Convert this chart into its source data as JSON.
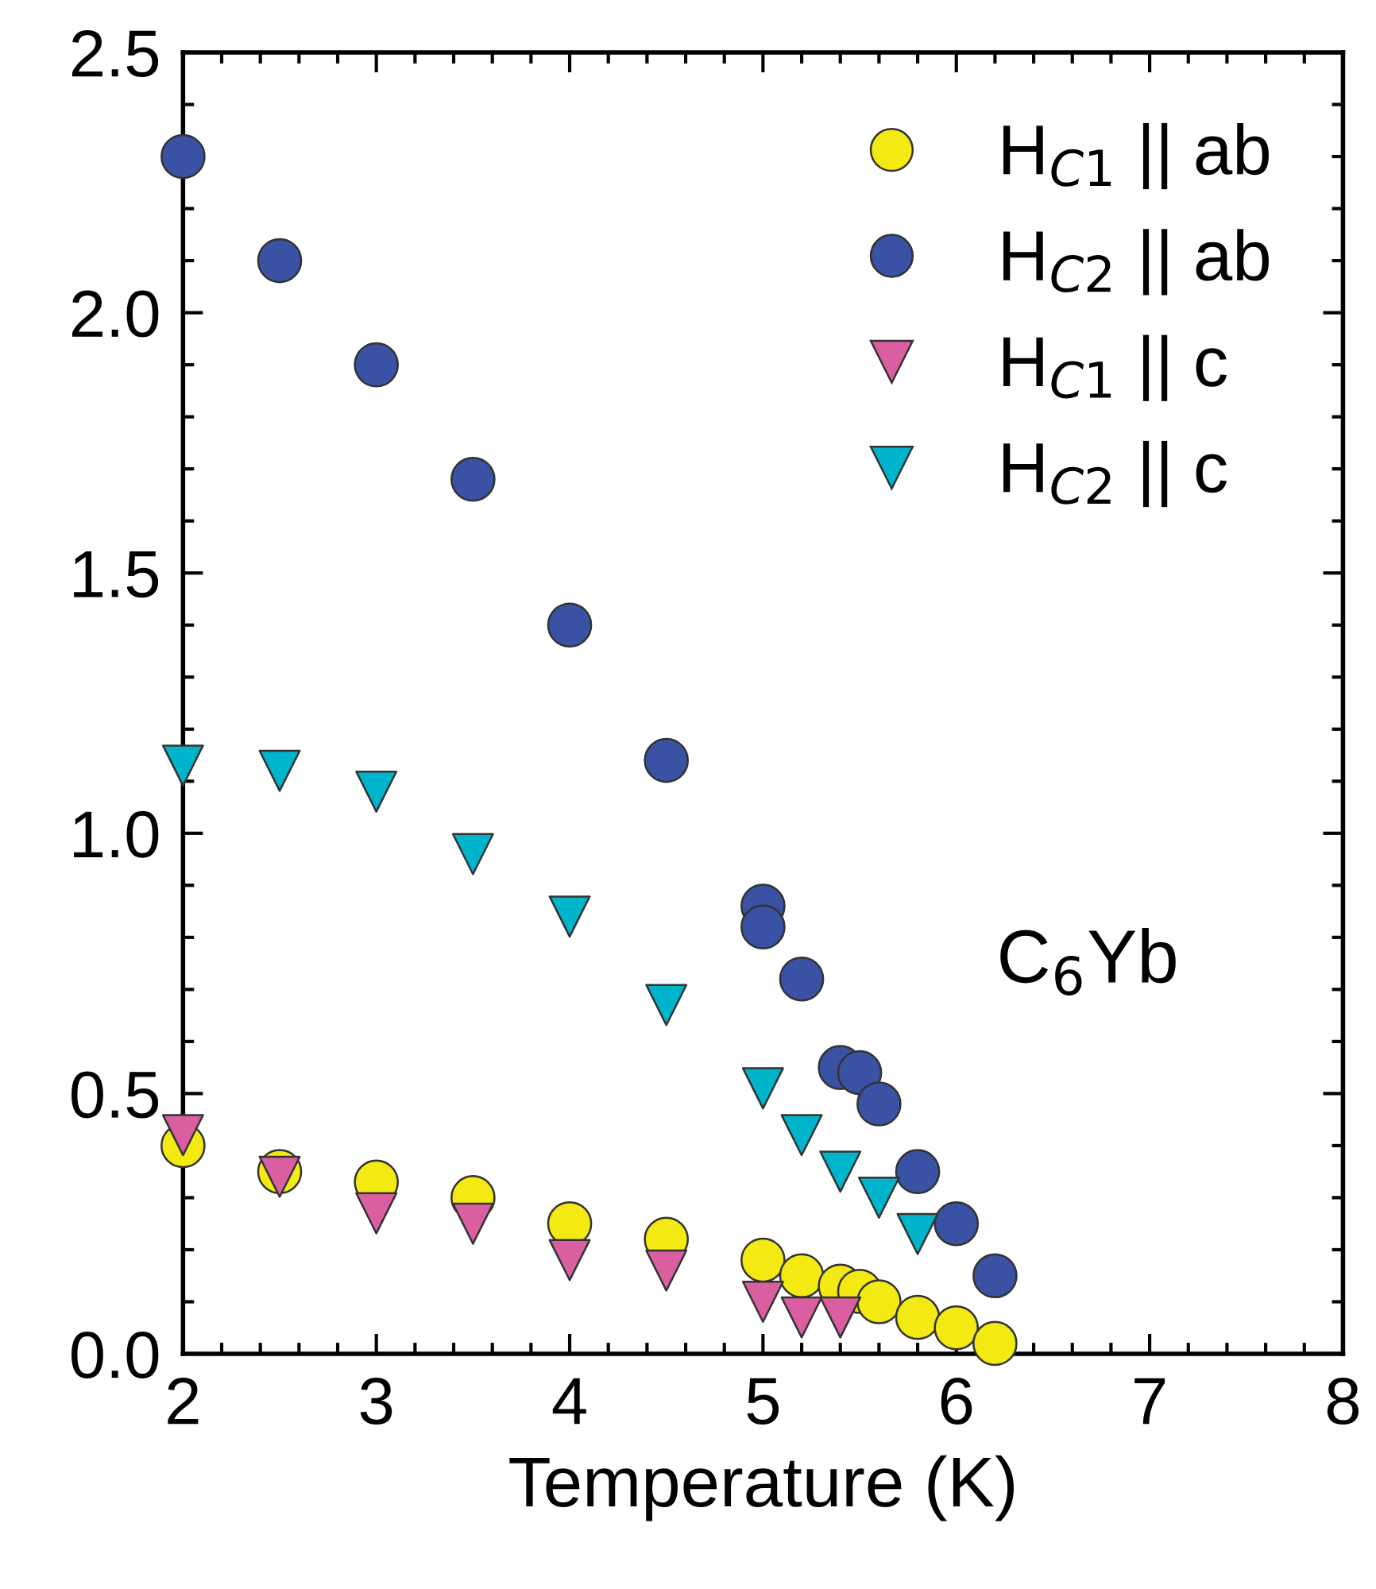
{
  "chart_data": {
    "type": "scatter",
    "xlabel": "Temperature (K)",
    "x": [
      2,
      2.5,
      3,
      3.5,
      4,
      4.5,
      5,
      5.2,
      5.4,
      5.5,
      5.6,
      5.8,
      6.0,
      6.2
    ],
    "series": [
      {
        "name": "H$_{C1}$ || ab",
        "color": "#f2ea12",
        "marker": "circle",
        "values": [
          0.4,
          0.35,
          0.33,
          0.3,
          0.25,
          0.22,
          0.18,
          0.15,
          0.13,
          0.12,
          0.1,
          0.07,
          0.05,
          0.02
        ]
      },
      {
        "name": "H$_{C2}$ || ab",
        "color": "#3a52a4",
        "marker": "circle",
        "x": [
          2,
          2.5,
          3,
          3.5,
          4,
          4.5,
          5,
          5,
          5.2,
          5.4,
          5.5,
          5.6,
          5.8,
          6.0,
          6.2
        ],
        "values": [
          2.3,
          2.1,
          1.9,
          1.68,
          1.4,
          1.14,
          0.86,
          0.82,
          0.72,
          0.55,
          0.54,
          0.48,
          0.35,
          0.25,
          0.15
        ]
      },
      {
        "name": "H$_{C1}$ || c",
        "color": "#d95fa0",
        "marker": "triangle",
        "x": [
          2,
          2.5,
          3,
          3.5,
          4,
          4.5,
          5,
          5.2,
          5.4
        ],
        "values": [
          0.42,
          0.34,
          0.27,
          0.25,
          0.18,
          0.16,
          0.1,
          0.07,
          0.07
        ]
      },
      {
        "name": "H$_{C2}$ || c",
        "color": "#00b4cc",
        "marker": "triangle",
        "x": [
          2,
          2.5,
          3,
          3.5,
          4,
          4.5,
          5,
          5.2,
          5.4,
          5.6,
          5.8
        ],
        "values": [
          1.13,
          1.12,
          1.08,
          0.96,
          0.84,
          0.67,
          0.51,
          0.42,
          0.35,
          0.3,
          0.23
        ]
      }
    ],
    "xlim": [
      2,
      8
    ],
    "ylim": [
      0,
      2.5
    ],
    "xticks": [
      2,
      {
        "value": 2.2,
        "label": null
      },
      {
        "value": 2.4,
        "label": null
      },
      {
        "value": 2.6,
        "label": null
      },
      {
        "value": 2.8,
        "label": null
      },
      3,
      {
        "value": 3.2,
        "label": null
      },
      {
        "value": 3.4,
        "label": null
      },
      {
        "value": 3.6,
        "label": null
      },
      {
        "value": 3.8,
        "label": null
      },
      4,
      {
        "value": 4.2,
        "label": null
      },
      {
        "value": 4.4,
        "label": null
      },
      {
        "value": 4.6,
        "label": null
      },
      {
        "value": 4.8,
        "label": null
      },
      5,
      {
        "value": 5.2,
        "label": null
      },
      {
        "value": 5.4,
        "label": null
      },
      {
        "value": 5.6,
        "label": null
      },
      {
        "value": 5.8,
        "label": null
      },
      6,
      {
        "value": 6.2,
        "label": null
      },
      {
        "value": 6.4,
        "label": null
      },
      {
        "value": 6.6,
        "label": null
      },
      {
        "value": 6.8,
        "label": null
      },
      7,
      {
        "value": 7.2,
        "label": null
      },
      {
        "value": 7.4,
        "label": null
      },
      {
        "value": 7.6,
        "label": null
      },
      {
        "value": 7.8,
        "label": null
      },
      8
    ],
    "yticks": [
      {
        "value": 0,
        "label": "0.0"
      },
      {
        "value": 0.1,
        "label": null
      },
      {
        "value": 0.2,
        "label": null
      },
      {
        "value": 0.3,
        "label": null
      },
      {
        "value": 0.4,
        "label": null
      },
      0.5,
      {
        "value": 0.6,
        "label": null
      },
      {
        "value": 0.7,
        "label": null
      },
      {
        "value": 0.8,
        "label": null
      },
      {
        "value": 0.9,
        "label": null
      },
      {
        "value": 1.0,
        "label": "1.0"
      },
      {
        "value": 1.1,
        "label": null
      },
      {
        "value": 1.2,
        "label": null
      },
      {
        "value": 1.3,
        "label": null
      },
      {
        "value": 1.4,
        "label": null
      },
      1.5,
      {
        "value": 1.6,
        "label": null
      },
      {
        "value": 1.7,
        "label": null
      },
      {
        "value": 1.8,
        "label": null
      },
      {
        "value": 1.9,
        "label": null
      },
      {
        "value": 2.0,
        "label": "2.0"
      },
      {
        "value": 2.1,
        "label": null
      },
      {
        "value": 2.2,
        "label": null
      },
      {
        "value": 2.3,
        "label": null
      },
      {
        "value": 2.4,
        "label": null
      },
      2.5
    ],
    "annotations": [
      "C$_{6}$Yb"
    ],
    "grid": false,
    "legend": "top right"
  }
}
